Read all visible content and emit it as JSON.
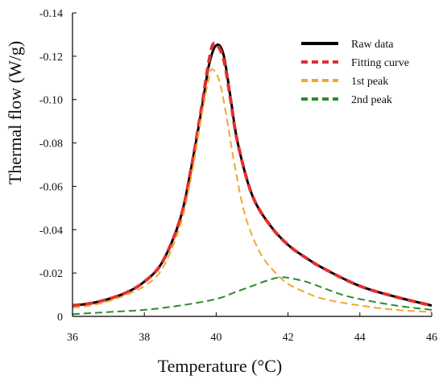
{
  "chart_data": {
    "type": "line",
    "xlabel": "Temperature (°C)",
    "ylabel": "Thermal flow (W/g)",
    "xlim": [
      36,
      46
    ],
    "ylim": [
      0,
      -0.14
    ],
    "x_ticks": [
      "36",
      "38",
      "40",
      "42",
      "44",
      "46"
    ],
    "y_ticks": [
      "0",
      "-0.02",
      "-0.04",
      "-0.06",
      "-0.08",
      "-0.10",
      "-0.12",
      "-0.14"
    ],
    "y_axis_inverted": true,
    "grid": false,
    "legend_position": "top-right",
    "series": [
      {
        "name": "Raw data",
        "color": "#000000",
        "style": "solid",
        "x": [
          36,
          36.5,
          37,
          37.5,
          38,
          38.5,
          39,
          39.3,
          39.6,
          39.8,
          40,
          40.2,
          40.4,
          40.6,
          41,
          41.5,
          42,
          42.5,
          43,
          44,
          45,
          46
        ],
        "y": [
          -0.005,
          -0.006,
          -0.008,
          -0.011,
          -0.016,
          -0.025,
          -0.045,
          -0.068,
          -0.096,
          -0.116,
          -0.125,
          -0.121,
          -0.101,
          -0.08,
          -0.056,
          -0.042,
          -0.033,
          -0.027,
          -0.022,
          -0.014,
          -0.009,
          -0.005
        ]
      },
      {
        "name": "Fitting curve",
        "color": "#e03030",
        "style": "dashed",
        "x": [
          36,
          36.5,
          37,
          37.5,
          38,
          38.5,
          39,
          39.3,
          39.6,
          39.8,
          39.95,
          40.2,
          40.4,
          40.6,
          41,
          41.5,
          42,
          42.5,
          43,
          44,
          45,
          46
        ],
        "y": [
          -0.005,
          -0.006,
          -0.008,
          -0.011,
          -0.016,
          -0.025,
          -0.045,
          -0.068,
          -0.097,
          -0.118,
          -0.126,
          -0.119,
          -0.1,
          -0.08,
          -0.056,
          -0.042,
          -0.033,
          -0.027,
          -0.022,
          -0.014,
          -0.009,
          -0.005
        ]
      },
      {
        "name": "1st peak",
        "color": "#f0a830",
        "style": "dashed",
        "x": [
          36,
          36.5,
          37,
          37.5,
          38,
          38.5,
          39,
          39.3,
          39.6,
          39.8,
          39.9,
          40.1,
          40.3,
          40.5,
          40.8,
          41.2,
          41.6,
          42,
          42.5,
          43,
          44,
          45,
          46
        ],
        "y": [
          -0.004,
          -0.005,
          -0.007,
          -0.01,
          -0.014,
          -0.022,
          -0.042,
          -0.064,
          -0.093,
          -0.11,
          -0.114,
          -0.108,
          -0.091,
          -0.071,
          -0.047,
          -0.03,
          -0.021,
          -0.015,
          -0.011,
          -0.008,
          -0.005,
          -0.003,
          -0.002
        ]
      },
      {
        "name": "2nd peak",
        "color": "#2e8b2e",
        "style": "dashed",
        "x": [
          36,
          37,
          38,
          39,
          40,
          40.5,
          41,
          41.5,
          41.8,
          42,
          42.5,
          43,
          43.5,
          44,
          45,
          46
        ],
        "y": [
          -0.001,
          -0.002,
          -0.003,
          -0.005,
          -0.008,
          -0.011,
          -0.014,
          -0.017,
          -0.018,
          -0.0178,
          -0.016,
          -0.013,
          -0.01,
          -0.008,
          -0.005,
          -0.003
        ]
      }
    ]
  }
}
